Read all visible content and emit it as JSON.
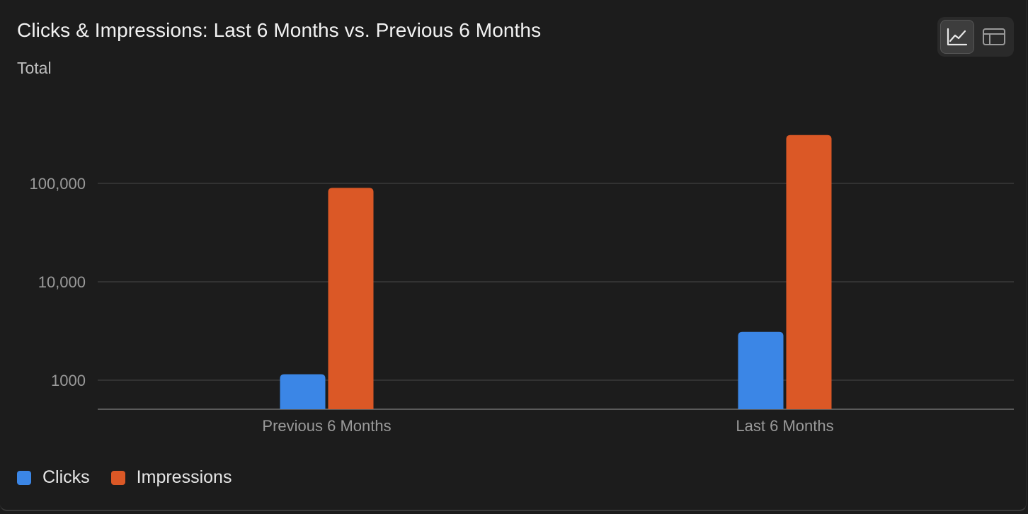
{
  "header": {
    "title": "Clicks & Impressions: Last 6 Months vs. Previous 6 Months",
    "subtitle": "Total"
  },
  "toolbar": {
    "chart_view_icon": "line-chart-icon",
    "table_view_icon": "table-icon",
    "active_view": "chart"
  },
  "colors": {
    "clicks": "#3b86e6",
    "impressions": "#db5826",
    "grid": "#3a3a3a",
    "axis": "#5a5a5a",
    "tick_text": "#9a9a9a"
  },
  "chart_data": {
    "type": "bar",
    "title": "Clicks & Impressions: Last 6 Months vs. Previous 6 Months",
    "subtitle": "Total",
    "categories": [
      "Previous 6 Months",
      "Last 6 Months"
    ],
    "series": [
      {
        "name": "Clicks",
        "values": [
          1150,
          3100
        ]
      },
      {
        "name": "Impressions",
        "values": [
          90000,
          310000
        ]
      }
    ],
    "y_scale": "log",
    "y_ticks": [
      {
        "value": 1000,
        "label": "1000"
      },
      {
        "value": 10000,
        "label": "10,000"
      },
      {
        "value": 100000,
        "label": "100,000"
      }
    ],
    "ylim": [
      500,
      350000
    ],
    "grid": true,
    "legend": "bottom-left"
  }
}
